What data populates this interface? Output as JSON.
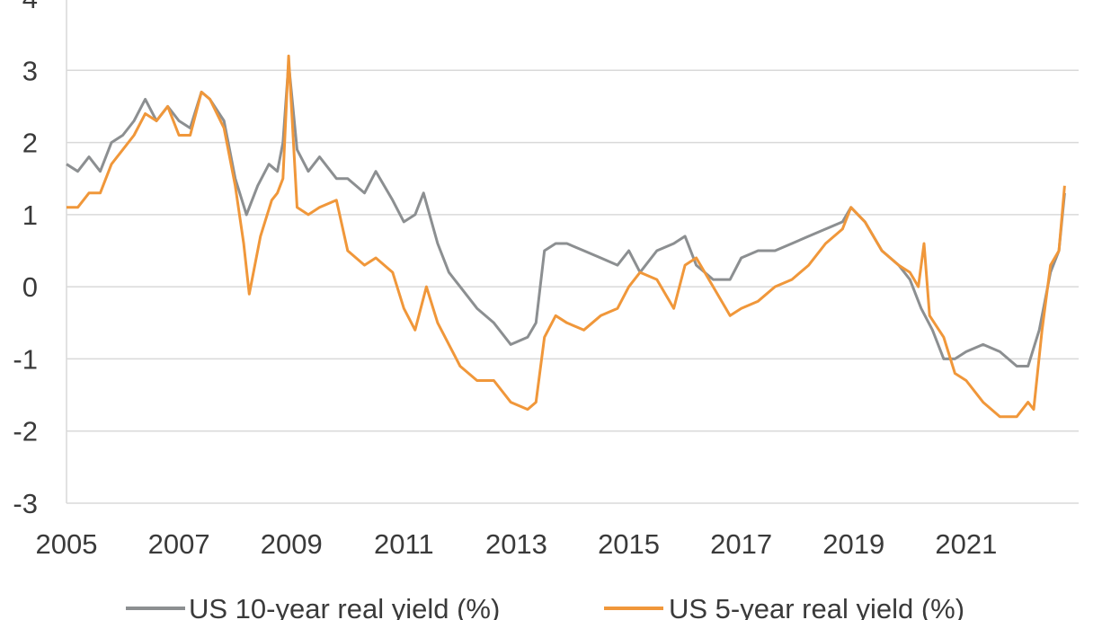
{
  "chart_data": {
    "type": "line",
    "title": "",
    "xlabel": "",
    "ylabel": "",
    "xlim": [
      2005,
      2023.0
    ],
    "ylim": [
      -3,
      4
    ],
    "grid": "horizontal",
    "legend_position": "bottom",
    "x_ticks": [
      "2005",
      "2007",
      "2009",
      "2011",
      "2013",
      "2015",
      "2017",
      "2019",
      "2021"
    ],
    "y_ticks": [
      "-3",
      "-2",
      "-1",
      "0",
      "1",
      "2",
      "3",
      "4"
    ],
    "colors": {
      "US 10-year real yield (%)": "#8c8f91",
      "US 5-year real yield (%)": "#f0973a"
    },
    "series": [
      {
        "name": "US 10-year real yield (%)",
        "color": "#8c8f91",
        "x": [
          2005.0,
          2005.2,
          2005.4,
          2005.6,
          2005.8,
          2006.0,
          2006.2,
          2006.4,
          2006.6,
          2006.8,
          2007.0,
          2007.2,
          2007.4,
          2007.55,
          2007.8,
          2008.0,
          2008.2,
          2008.4,
          2008.6,
          2008.75,
          2008.85,
          2008.95,
          2009.1,
          2009.3,
          2009.5,
          2009.8,
          2010.0,
          2010.3,
          2010.5,
          2010.8,
          2011.0,
          2011.2,
          2011.35,
          2011.6,
          2011.8,
          2012.0,
          2012.3,
          2012.6,
          2012.9,
          2013.2,
          2013.35,
          2013.5,
          2013.7,
          2013.9,
          2014.2,
          2014.5,
          2014.8,
          2015.0,
          2015.2,
          2015.5,
          2015.8,
          2016.0,
          2016.2,
          2016.5,
          2016.8,
          2017.0,
          2017.3,
          2017.6,
          2017.9,
          2018.2,
          2018.5,
          2018.8,
          2018.95,
          2019.2,
          2019.5,
          2019.8,
          2020.0,
          2020.2,
          2020.4,
          2020.6,
          2020.8,
          2021.0,
          2021.3,
          2021.6,
          2021.9,
          2022.1,
          2022.3,
          2022.5,
          2022.65,
          2022.75
        ],
        "values": [
          1.7,
          1.6,
          1.8,
          1.6,
          2.0,
          2.1,
          2.3,
          2.6,
          2.3,
          2.5,
          2.3,
          2.2,
          2.7,
          2.6,
          2.3,
          1.5,
          1.0,
          1.4,
          1.7,
          1.6,
          2.0,
          3.1,
          1.9,
          1.6,
          1.8,
          1.5,
          1.5,
          1.3,
          1.6,
          1.2,
          0.9,
          1.0,
          1.3,
          0.6,
          0.2,
          0.0,
          -0.3,
          -0.5,
          -0.8,
          -0.7,
          -0.5,
          0.5,
          0.6,
          0.6,
          0.5,
          0.4,
          0.3,
          0.5,
          0.2,
          0.5,
          0.6,
          0.7,
          0.3,
          0.1,
          0.1,
          0.4,
          0.5,
          0.5,
          0.6,
          0.7,
          0.8,
          0.9,
          1.1,
          0.9,
          0.5,
          0.3,
          0.1,
          -0.3,
          -0.6,
          -1.0,
          -1.0,
          -0.9,
          -0.8,
          -0.9,
          -1.1,
          -1.1,
          -0.6,
          0.2,
          0.5,
          1.3
        ]
      },
      {
        "name": "US 5-year real yield (%)",
        "color": "#f0973a",
        "x": [
          2005.0,
          2005.2,
          2005.4,
          2005.6,
          2005.8,
          2006.0,
          2006.2,
          2006.4,
          2006.6,
          2006.8,
          2007.0,
          2007.2,
          2007.4,
          2007.55,
          2007.8,
          2008.0,
          2008.15,
          2008.25,
          2008.45,
          2008.65,
          2008.75,
          2008.85,
          2008.95,
          2009.1,
          2009.3,
          2009.5,
          2009.8,
          2010.0,
          2010.3,
          2010.5,
          2010.8,
          2011.0,
          2011.2,
          2011.4,
          2011.6,
          2011.8,
          2012.0,
          2012.3,
          2012.6,
          2012.9,
          2013.2,
          2013.35,
          2013.5,
          2013.7,
          2013.9,
          2014.2,
          2014.5,
          2014.8,
          2015.0,
          2015.2,
          2015.5,
          2015.8,
          2016.0,
          2016.2,
          2016.5,
          2016.8,
          2017.0,
          2017.3,
          2017.6,
          2017.9,
          2018.2,
          2018.5,
          2018.8,
          2018.95,
          2019.2,
          2019.5,
          2019.8,
          2020.0,
          2020.15,
          2020.25,
          2020.35,
          2020.6,
          2020.8,
          2021.0,
          2021.3,
          2021.6,
          2021.9,
          2022.1,
          2022.2,
          2022.35,
          2022.5,
          2022.65,
          2022.75
        ],
        "values": [
          1.1,
          1.1,
          1.3,
          1.3,
          1.7,
          1.9,
          2.1,
          2.4,
          2.3,
          2.5,
          2.1,
          2.1,
          2.7,
          2.6,
          2.2,
          1.4,
          0.6,
          -0.1,
          0.7,
          1.2,
          1.3,
          1.5,
          3.2,
          1.1,
          1.0,
          1.1,
          1.2,
          0.5,
          0.3,
          0.4,
          0.2,
          -0.3,
          -0.6,
          0.0,
          -0.5,
          -0.8,
          -1.1,
          -1.3,
          -1.3,
          -1.6,
          -1.7,
          -1.6,
          -0.7,
          -0.4,
          -0.5,
          -0.6,
          -0.4,
          -0.3,
          0.0,
          0.2,
          0.1,
          -0.3,
          0.3,
          0.4,
          0.0,
          -0.4,
          -0.3,
          -0.2,
          0.0,
          0.1,
          0.3,
          0.6,
          0.8,
          1.1,
          0.9,
          0.5,
          0.3,
          0.2,
          0.0,
          0.6,
          -0.4,
          -0.7,
          -1.2,
          -1.3,
          -1.6,
          -1.8,
          -1.8,
          -1.6,
          -1.7,
          -0.6,
          0.3,
          0.5,
          1.4
        ]
      }
    ]
  }
}
